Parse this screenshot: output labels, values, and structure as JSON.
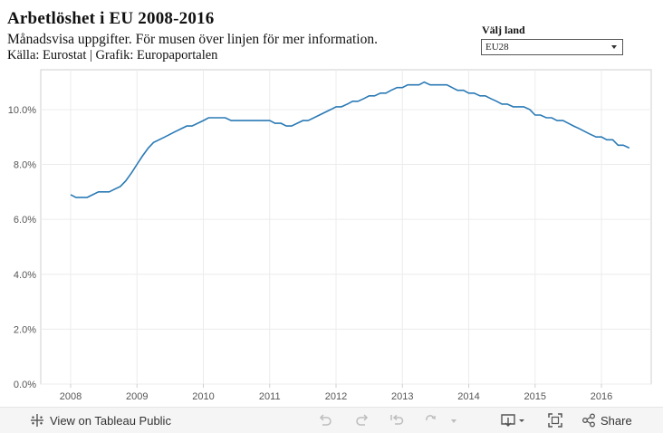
{
  "header": {
    "title": "Arbetlöshet i EU 2008-2016",
    "subtitle": "Månadsvisa uppgifter. För musen över linjen för mer information.",
    "source": "Källa: Eurostat | Grafik: Europaportalen"
  },
  "filter": {
    "label": "Välj land",
    "selected": "EU28"
  },
  "toolbar": {
    "view_label": "View on Tableau Public",
    "share_label": "Share"
  },
  "colors": {
    "line": "#2a7ab5",
    "grid": "#ececec",
    "axis": "#cfcfcf"
  },
  "chart_data": {
    "type": "line",
    "title": "Arbetlöshet i EU 2008-2016",
    "series_name": "EU28",
    "xlim": [
      2007.55,
      2016.75
    ],
    "ylim": [
      -0.001,
      11.45
    ],
    "x_ticks": [
      {
        "value": 2008,
        "label": "2008"
      },
      {
        "value": 2009,
        "label": "2009"
      },
      {
        "value": 2010,
        "label": "2010"
      },
      {
        "value": 2011,
        "label": "2011"
      },
      {
        "value": 2012,
        "label": "2012"
      },
      {
        "value": 2013,
        "label": "2013"
      },
      {
        "value": 2014,
        "label": "2014"
      },
      {
        "value": 2015,
        "label": "2015"
      },
      {
        "value": 2016,
        "label": "2016"
      }
    ],
    "y_ticks": [
      {
        "value": 0,
        "label": "0.0%"
      },
      {
        "value": 2,
        "label": "2.0%"
      },
      {
        "value": 4,
        "label": "4.0%"
      },
      {
        "value": 6,
        "label": "6.0%"
      },
      {
        "value": 8,
        "label": "8.0%"
      },
      {
        "value": 10,
        "label": "10.0%"
      }
    ],
    "points": [
      [
        2008.0,
        6.9
      ],
      [
        2008.08,
        6.8
      ],
      [
        2008.25,
        6.8
      ],
      [
        2008.42,
        7.0
      ],
      [
        2008.58,
        7.0
      ],
      [
        2008.75,
        7.2
      ],
      [
        2008.83,
        7.4
      ],
      [
        2008.92,
        7.7
      ],
      [
        2009.0,
        8.0
      ],
      [
        2009.08,
        8.3
      ],
      [
        2009.17,
        8.6
      ],
      [
        2009.25,
        8.8
      ],
      [
        2009.42,
        9.0
      ],
      [
        2009.58,
        9.2
      ],
      [
        2009.75,
        9.4
      ],
      [
        2009.83,
        9.4
      ],
      [
        2010.0,
        9.6
      ],
      [
        2010.08,
        9.7
      ],
      [
        2010.33,
        9.7
      ],
      [
        2010.42,
        9.6
      ],
      [
        2010.58,
        9.6
      ],
      [
        2010.75,
        9.6
      ],
      [
        2010.92,
        9.6
      ],
      [
        2011.0,
        9.6
      ],
      [
        2011.08,
        9.5
      ],
      [
        2011.17,
        9.5
      ],
      [
        2011.25,
        9.4
      ],
      [
        2011.33,
        9.4
      ],
      [
        2011.5,
        9.6
      ],
      [
        2011.58,
        9.6
      ],
      [
        2011.75,
        9.8
      ],
      [
        2011.92,
        10.0
      ],
      [
        2012.0,
        10.1
      ],
      [
        2012.08,
        10.1
      ],
      [
        2012.17,
        10.2
      ],
      [
        2012.25,
        10.3
      ],
      [
        2012.33,
        10.3
      ],
      [
        2012.42,
        10.4
      ],
      [
        2012.5,
        10.5
      ],
      [
        2012.58,
        10.5
      ],
      [
        2012.67,
        10.6
      ],
      [
        2012.75,
        10.6
      ],
      [
        2012.83,
        10.7
      ],
      [
        2012.92,
        10.8
      ],
      [
        2013.0,
        10.8
      ],
      [
        2013.08,
        10.9
      ],
      [
        2013.17,
        10.9
      ],
      [
        2013.25,
        10.9
      ],
      [
        2013.33,
        11.0
      ],
      [
        2013.42,
        10.9
      ],
      [
        2013.58,
        10.9
      ],
      [
        2013.67,
        10.9
      ],
      [
        2013.75,
        10.8
      ],
      [
        2013.83,
        10.7
      ],
      [
        2013.92,
        10.7
      ],
      [
        2014.0,
        10.6
      ],
      [
        2014.08,
        10.6
      ],
      [
        2014.17,
        10.5
      ],
      [
        2014.25,
        10.5
      ],
      [
        2014.33,
        10.4
      ],
      [
        2014.42,
        10.3
      ],
      [
        2014.5,
        10.2
      ],
      [
        2014.58,
        10.2
      ],
      [
        2014.67,
        10.1
      ],
      [
        2014.75,
        10.1
      ],
      [
        2014.83,
        10.1
      ],
      [
        2014.92,
        10.0
      ],
      [
        2015.0,
        9.8
      ],
      [
        2015.08,
        9.8
      ],
      [
        2015.17,
        9.7
      ],
      [
        2015.25,
        9.7
      ],
      [
        2015.33,
        9.6
      ],
      [
        2015.42,
        9.6
      ],
      [
        2015.5,
        9.5
      ],
      [
        2015.58,
        9.4
      ],
      [
        2015.67,
        9.3
      ],
      [
        2015.75,
        9.2
      ],
      [
        2015.83,
        9.1
      ],
      [
        2015.92,
        9.0
      ],
      [
        2016.0,
        9.0
      ],
      [
        2016.08,
        8.9
      ],
      [
        2016.17,
        8.9
      ],
      [
        2016.25,
        8.7
      ],
      [
        2016.33,
        8.7
      ],
      [
        2016.42,
        8.6
      ]
    ]
  }
}
